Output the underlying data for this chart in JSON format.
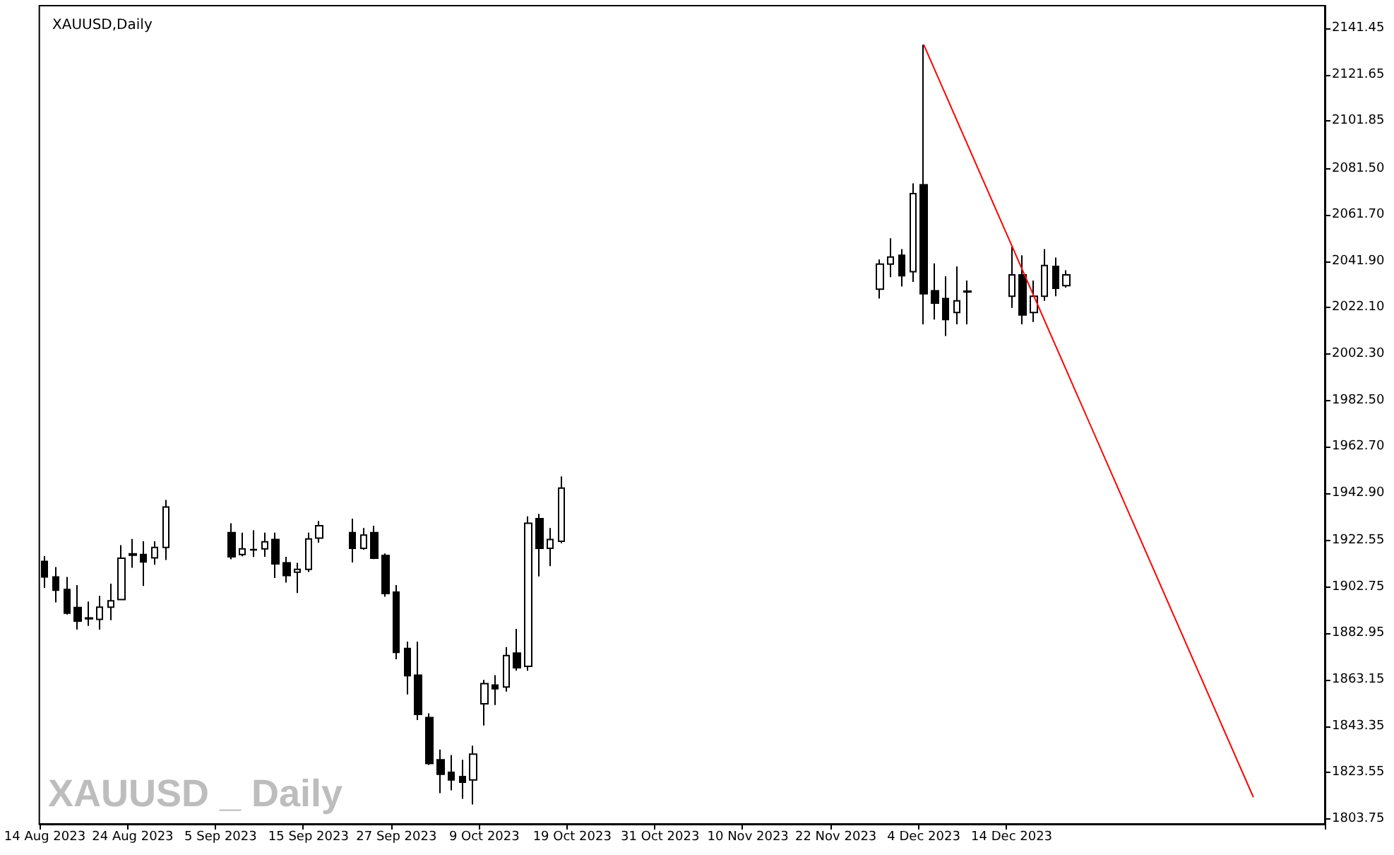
{
  "chart_data": {
    "type": "candlestick",
    "title": "XAUUSD,Daily",
    "annotations": [
      "XAUUSD _ Daily"
    ],
    "grid": false,
    "categories": [
      "14 Aug 2023",
      null,
      null,
      null,
      null,
      null,
      null,
      null,
      "24 Aug 2023",
      null,
      null,
      null,
      null,
      null,
      null,
      null,
      "5 Sep 2023",
      null,
      null,
      null,
      null,
      null,
      null,
      null,
      "15 Sep 2023",
      null,
      null,
      null,
      null,
      null,
      null,
      null,
      "27 Sep 2023",
      null,
      null,
      null,
      null,
      null,
      null,
      null,
      "9 Oct 2023",
      null,
      null,
      null,
      null,
      null,
      null,
      null,
      "19 Oct 2023",
      null,
      null,
      null,
      null,
      null,
      null,
      null,
      "31 Oct 2023",
      null,
      null,
      null,
      null,
      null,
      null,
      null,
      "10 Nov 2023",
      null,
      null,
      null,
      null,
      null,
      null,
      null,
      "22 Nov 2023",
      null,
      null,
      null,
      null,
      null,
      null,
      null,
      "4 Dec 2023",
      null,
      null,
      null,
      null,
      null,
      null,
      null,
      "14 Dec 2023",
      null,
      null,
      null,
      null,
      null,
      null,
      null,
      null,
      null,
      null,
      null,
      null,
      null,
      null,
      null,
      null,
      null,
      null,
      null,
      null,
      null,
      null,
      null,
      null,
      null,
      null,
      null,
      null
    ],
    "ylim": [
      1801.6,
      2151.1
    ],
    "yticks": [
      1803.75,
      1823.55,
      1843.35,
      1863.15,
      1882.95,
      1902.75,
      1922.55,
      {
        "value": 1942.9,
        "label": "1942.90"
      },
      {
        "value": 1962.7,
        "label": "1962.70"
      },
      {
        "value": 1982.5,
        "label": "1982.50"
      },
      {
        "value": 2002.3,
        "label": "2002.30"
      },
      {
        "value": 2022.1,
        "label": "2022.10"
      },
      {
        "value": 2041.9,
        "label": "2041.90"
      },
      {
        "value": 2061.7,
        "label": "2061.70"
      },
      {
        "value": 2081.5,
        "label": "2081.50"
      },
      2101.85,
      2121.65,
      2141.45
    ],
    "series": [
      {
        "type": "candlestick",
        "color": "#000000",
        "ohlc": [
          [
            1913.7,
            1916,
            1902.4,
            1907.1
          ],
          [
            1907.1,
            1911.3,
            1896.2,
            1901.4
          ],
          [
            1901.7,
            1907.1,
            1891,
            1891.6
          ],
          [
            1894,
            1903.6,
            1884.6,
            1888.2
          ],
          [
            1889.6,
            1896.6,
            1886.2,
            1889.2
          ],
          [
            1889,
            1899,
            1884.6,
            1894.2
          ],
          [
            1894.2,
            1904.2,
            1888.6,
            1896.9
          ],
          [
            1897.4,
            1920.7,
            1897.4,
            1915.1
          ],
          [
            1917,
            1923.3,
            1911,
            1916.4
          ],
          [
            1916.7,
            1922.3,
            1903.2,
            1913.5
          ],
          [
            1915.2,
            1922.3,
            1912.3,
            1919.7
          ],
          [
            1919.7,
            1940,
            1914.3,
            1937
          ],
          null,
          null,
          null,
          null,
          null,
          [
            1926,
            1930,
            1914.6,
            1915.7
          ],
          [
            1916.7,
            1926,
            1915.9,
            1919.1
          ],
          [
            1918.8,
            1927,
            1915.6,
            1918.6
          ],
          [
            1919.1,
            1926,
            1915.7,
            1922.1
          ],
          [
            1923.1,
            1926,
            1906.6,
            1912.7
          ],
          [
            1913.1,
            1915.7,
            1904.7,
            1907.7
          ],
          [
            1909.1,
            1913.1,
            1900.2,
            1910.3
          ],
          [
            1910.3,
            1926,
            1909.2,
            1923.3
          ],
          [
            1923.7,
            1931,
            1921.7,
            1929
          ],
          null,
          null,
          [
            1926,
            1932,
            1913.3,
            1919.3
          ],
          [
            1919.3,
            1928,
            1918.7,
            1925
          ],
          [
            1926,
            1929,
            1914.7,
            1915.1
          ],
          [
            1916.3,
            1917.1,
            1898.6,
            1900
          ],
          [
            1900.6,
            1903.6,
            1871.9,
            1874.9
          ],
          [
            1876.5,
            1879.5,
            1856.9,
            1864.9
          ],
          [
            1865.1,
            1879.5,
            1846,
            1848.4
          ],
          [
            1847,
            1848.8,
            1826.8,
            1827.4
          ],
          [
            1829,
            1833.4,
            1814.7,
            1822.8
          ],
          [
            1823.6,
            1831,
            1815.9,
            1820.4
          ],
          [
            1821.8,
            1829,
            1812.3,
            1819.4
          ],
          [
            1820.4,
            1835,
            1809.9,
            1831.4
          ],
          [
            1852.9,
            1863.1,
            1843.6,
            1861.5
          ],
          [
            1860.9,
            1865.1,
            1852.4,
            1859.3
          ],
          [
            1860.1,
            1877.1,
            1858.1,
            1873.5
          ],
          [
            1874.6,
            1884.9,
            1867.1,
            1868.3
          ],
          [
            1868.9,
            1933,
            1867,
            1930
          ],
          [
            1932,
            1934,
            1907.3,
            1919.3
          ],
          [
            1919.3,
            1928,
            1911.7,
            1923.1
          ],
          [
            1922.3,
            1950,
            1921.5,
            1945
          ],
          null,
          null,
          null,
          null,
          null,
          null,
          null,
          null,
          null,
          null,
          null,
          null,
          null,
          null,
          null,
          null,
          null,
          null,
          null,
          null,
          null,
          null,
          null,
          null,
          null,
          null,
          null,
          null,
          [
            2030,
            2042.7,
            2026,
            2040.7
          ],
          [
            2040.7,
            2051.7,
            2035.1,
            2043.7
          ],
          [
            2044.5,
            2047.1,
            2031.1,
            2035.7
          ],
          [
            2037.5,
            2075.2,
            2033.1,
            2070.8
          ],
          [
            2074.6,
            2134.4,
            2015,
            2028
          ],
          [
            2029.3,
            2041,
            2017,
            2024
          ],
          [
            2026,
            2035.5,
            2010,
            2017
          ],
          [
            2020,
            2039.7,
            2015,
            2025
          ],
          [
            2029.2,
            2033.7,
            2015,
            2028.8
          ],
          null,
          null,
          null,
          [
            2027,
            2048.1,
            2022,
            2036.1
          ],
          [
            2036.1,
            2044.5,
            2015,
            2019
          ],
          [
            2020,
            2033.7,
            2016,
            2027
          ],
          [
            2027,
            2047.1,
            2025,
            2040.1
          ],
          [
            2039.7,
            2043.5,
            2027,
            2030.4
          ],
          [
            2031.5,
            2038.1,
            2030.7,
            2036.1
          ],
          null,
          null,
          null,
          null,
          null,
          null,
          null,
          null,
          null,
          null,
          null,
          null,
          null,
          null,
          null,
          null,
          null,
          null,
          null,
          null,
          null,
          null,
          null
        ]
      },
      {
        "type": "line",
        "color": "#ff0000",
        "marker": "none",
        "values": [
          null,
          null,
          null,
          null,
          null,
          null,
          null,
          null,
          null,
          null,
          null,
          null,
          null,
          null,
          null,
          null,
          null,
          null,
          null,
          null,
          null,
          null,
          null,
          null,
          null,
          null,
          null,
          null,
          null,
          null,
          null,
          null,
          null,
          null,
          null,
          null,
          null,
          null,
          null,
          null,
          null,
          null,
          null,
          null,
          null,
          null,
          null,
          null,
          null,
          null,
          null,
          null,
          null,
          null,
          null,
          null,
          null,
          null,
          null,
          null,
          null,
          null,
          null,
          null,
          null,
          null,
          null,
          null,
          null,
          null,
          null,
          null,
          null,
          null,
          null,
          null,
          null,
          null,
          null,
          null,
          2134.4,
          null,
          null,
          null,
          null,
          null,
          null,
          null,
          null,
          null,
          null,
          null,
          null,
          null,
          null,
          null,
          null,
          null,
          null,
          null,
          null,
          null,
          null,
          null,
          null,
          null,
          null,
          null,
          null,
          null,
          1813,
          null,
          null,
          null,
          null,
          null,
          null
        ]
      }
    ]
  }
}
